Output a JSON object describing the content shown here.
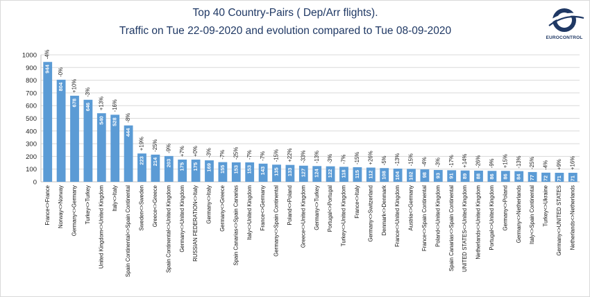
{
  "header": {
    "title_line1": "Top 40 Country-Pairs ( Dep/Arr flights).",
    "title_line2": "Traffic on Tue 22-09-2020 and evolution compared to Tue 08-09-2020",
    "logo_text": "EUROCONTROL"
  },
  "colors": {
    "bar": "#5b9bd5",
    "grid": "#d9d9d9",
    "title": "#1f3864"
  },
  "chart_data": {
    "type": "bar",
    "title": "Top 40 Country-Pairs ( Dep/Arr flights). Traffic on Tue 22-09-2020 and evolution compared to Tue 08-09-2020",
    "xlabel": "",
    "ylabel": "",
    "ylim": [
      0,
      1000
    ],
    "yticks": [
      0,
      100,
      200,
      300,
      400,
      500,
      600,
      700,
      800,
      900,
      1000
    ],
    "grid": true,
    "categories": [
      "France<>France",
      "Norway<>Norway",
      "Germany<>Germany",
      "Turkey<>Turkey",
      "United Kingdom<>United Kingdom",
      "Italy<>Italy",
      "Spain Continental<>Spain Continental",
      "Sweden<>Sweden",
      "Greece<>Greece",
      "Spain Continental<>United Kingdom",
      "Germany<>United Kingdom",
      "RUSSIAN FEDERATION<>Italy",
      "Germany<>Italy",
      "Germany<>Greece",
      "Spain Canarias<>Spain Canarias",
      "Italy<>United Kingdom",
      "France<>Germany",
      "Germany<>Spain Continental",
      "Poland<>Poland",
      "Greece<>United Kingdom",
      "Germany<>Turkey",
      "Portugal<>Portugal",
      "Turkey<>United Kingdom",
      "France<>Italy",
      "Germany<>Switzerland",
      "Denmark<>Denmark",
      "France<>United Kingdom",
      "Austria<>Germany",
      "France<>Spain Continental",
      "Poland<>United Kingdom",
      "Spain Canarias<>Spain Continental",
      "UNITED STATES<>United Kingdom",
      "Netherlands<>United Kingdom",
      "Portugal<>United Kingdom",
      "Germany<>Poland",
      "Germany<>Netherlands",
      "Italy<>Spain Continental",
      "Turkey<>Ukraine",
      "Germany<>UNITED STATES",
      "Netherlands<>Netherlands"
    ],
    "values": [
      944,
      804,
      678,
      646,
      540,
      528,
      444,
      223,
      214,
      203,
      175,
      175,
      169,
      155,
      153,
      153,
      143,
      135,
      133,
      127,
      124,
      122,
      118,
      115,
      112,
      108,
      104,
      102,
      98,
      93,
      91,
      89,
      88,
      86,
      86,
      84,
      77,
      72,
      71,
      71
    ],
    "changes": [
      "-4%",
      "-0%",
      "+10%",
      "-3%",
      "+13%",
      "-16%",
      "-8%",
      "+19%",
      "-25%",
      "-9%",
      "+7%",
      "+0%",
      "-3%",
      "-7%",
      "-25%",
      "-7%",
      "-7%",
      "-15%",
      "+22%",
      "-33%",
      "-13%",
      "-3%",
      "-7%",
      "-15%",
      "+26%",
      "-5%",
      "-13%",
      "-15%",
      "-4%",
      "-3%",
      "-17%",
      "+14%",
      "-26%",
      "-9%",
      "+15%",
      "-13%",
      "-25%",
      "-4%",
      "+9%",
      "+16%"
    ]
  }
}
